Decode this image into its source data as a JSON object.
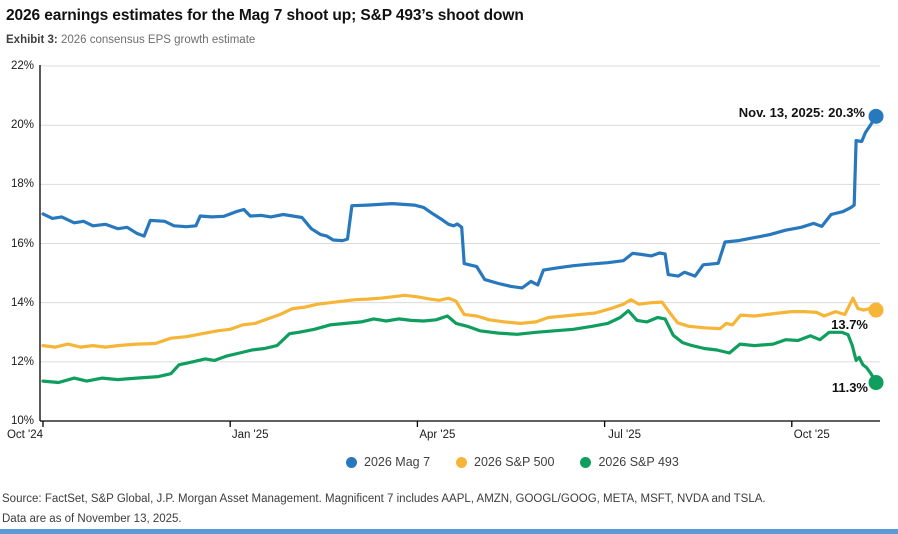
{
  "page": {
    "title": "2026 earnings estimates for the Mag 7 shoot up; S&P 493’s shoot down",
    "exhibit_label": "Exhibit 3:",
    "exhibit_text": " 2026 consensus EPS growth estimate",
    "source_line1": "Source: FactSet, S&P Global, J.P. Morgan Asset Management. Magnificent 7 includes AAPL, AMZN, GOOGL/GOOG, META, MSFT, NVDA and TSLA.",
    "source_line2": "Data are as of November 13, 2025."
  },
  "annotations": {
    "peak_label": "Nov. 13, 2025: 20.3%",
    "sp500_end_label": "13.7%",
    "sp493_end_label": "11.3%"
  },
  "colors": {
    "mag7_blue": "#2878BE",
    "sp500_yellow": "#F7B538",
    "sp493_green": "#0F9E5E",
    "grid_gray": "#dcdcdc",
    "axis_black": "#000000",
    "footer_blue": "#5b9bd5"
  },
  "chart_data": {
    "type": "line",
    "title": "2026 consensus EPS growth estimate",
    "x_unit": "months since Oct 1, 2024",
    "ylim": [
      10,
      22
    ],
    "xlim": [
      0,
      13.45
    ],
    "grid": "horizontal",
    "legend_position": "bottom",
    "y_ticks": [
      {
        "label": "22%",
        "value": 22
      },
      {
        "label": "20%",
        "value": 20
      },
      {
        "label": "18%",
        "value": 18
      },
      {
        "label": "16%",
        "value": 16
      },
      {
        "label": "14%",
        "value": 14
      },
      {
        "label": "12%",
        "value": 12
      },
      {
        "label": "10%",
        "value": 10
      }
    ],
    "x_ticks": [
      {
        "label": "Oct '24",
        "month": 0
      },
      {
        "label": "Jan '25",
        "month": 3
      },
      {
        "label": "Apr '25",
        "month": 6
      },
      {
        "label": "Jul '25",
        "month": 9
      },
      {
        "label": "Oct '25",
        "month": 12
      }
    ],
    "series": [
      {
        "name": "2026 Mag 7",
        "color": "#2878BE",
        "end_value": 20.3,
        "end_date": "Nov. 13, 2025",
        "points": [
          [
            0,
            17.0
          ],
          [
            0.15,
            16.85
          ],
          [
            0.3,
            16.9
          ],
          [
            0.5,
            16.7
          ],
          [
            0.65,
            16.75
          ],
          [
            0.8,
            16.6
          ],
          [
            1.0,
            16.65
          ],
          [
            1.2,
            16.5
          ],
          [
            1.35,
            16.55
          ],
          [
            1.5,
            16.35
          ],
          [
            1.62,
            16.25
          ],
          [
            1.72,
            16.78
          ],
          [
            1.95,
            16.75
          ],
          [
            2.1,
            16.6
          ],
          [
            2.3,
            16.57
          ],
          [
            2.45,
            16.6
          ],
          [
            2.52,
            16.93
          ],
          [
            2.7,
            16.9
          ],
          [
            2.9,
            16.92
          ],
          [
            3.1,
            17.08
          ],
          [
            3.22,
            17.15
          ],
          [
            3.32,
            16.93
          ],
          [
            3.5,
            16.95
          ],
          [
            3.65,
            16.9
          ],
          [
            3.85,
            16.98
          ],
          [
            4.0,
            16.93
          ],
          [
            4.15,
            16.88
          ],
          [
            4.3,
            16.5
          ],
          [
            4.45,
            16.3
          ],
          [
            4.55,
            16.25
          ],
          [
            4.65,
            16.12
          ],
          [
            4.8,
            16.1
          ],
          [
            4.88,
            16.15
          ],
          [
            4.95,
            17.28
          ],
          [
            5.2,
            17.3
          ],
          [
            5.6,
            17.35
          ],
          [
            5.95,
            17.3
          ],
          [
            6.1,
            17.22
          ],
          [
            6.25,
            17.0
          ],
          [
            6.4,
            16.8
          ],
          [
            6.5,
            16.65
          ],
          [
            6.58,
            16.6
          ],
          [
            6.64,
            16.66
          ],
          [
            6.71,
            16.55
          ],
          [
            6.75,
            15.32
          ],
          [
            6.95,
            15.22
          ],
          [
            7.08,
            14.78
          ],
          [
            7.3,
            14.65
          ],
          [
            7.5,
            14.55
          ],
          [
            7.68,
            14.5
          ],
          [
            7.82,
            14.72
          ],
          [
            7.93,
            14.6
          ],
          [
            8.02,
            15.1
          ],
          [
            8.25,
            15.18
          ],
          [
            8.5,
            15.25
          ],
          [
            8.75,
            15.3
          ],
          [
            9.05,
            15.35
          ],
          [
            9.3,
            15.42
          ],
          [
            9.45,
            15.67
          ],
          [
            9.6,
            15.63
          ],
          [
            9.75,
            15.58
          ],
          [
            9.88,
            15.68
          ],
          [
            9.97,
            15.65
          ],
          [
            10.02,
            14.95
          ],
          [
            10.18,
            14.9
          ],
          [
            10.28,
            15.03
          ],
          [
            10.45,
            14.9
          ],
          [
            10.58,
            15.28
          ],
          [
            10.82,
            15.33
          ],
          [
            10.93,
            16.05
          ],
          [
            11.15,
            16.1
          ],
          [
            11.4,
            16.2
          ],
          [
            11.65,
            16.3
          ],
          [
            11.9,
            16.45
          ],
          [
            12.15,
            16.55
          ],
          [
            12.35,
            16.68
          ],
          [
            12.48,
            16.58
          ],
          [
            12.63,
            16.98
          ],
          [
            12.82,
            17.08
          ],
          [
            12.95,
            17.22
          ],
          [
            13.0,
            17.3
          ],
          [
            13.03,
            19.48
          ],
          [
            13.12,
            19.45
          ],
          [
            13.18,
            19.75
          ],
          [
            13.26,
            20.0
          ],
          [
            13.35,
            20.3
          ]
        ]
      },
      {
        "name": "2026 S&P 500",
        "color": "#F7B538",
        "end_value": 13.7,
        "points": [
          [
            0,
            12.55
          ],
          [
            0.2,
            12.5
          ],
          [
            0.4,
            12.6
          ],
          [
            0.6,
            12.5
          ],
          [
            0.8,
            12.55
          ],
          [
            1.0,
            12.5
          ],
          [
            1.2,
            12.55
          ],
          [
            1.5,
            12.6
          ],
          [
            1.8,
            12.62
          ],
          [
            2.05,
            12.8
          ],
          [
            2.3,
            12.85
          ],
          [
            2.55,
            12.95
          ],
          [
            2.8,
            13.05
          ],
          [
            3.0,
            13.1
          ],
          [
            3.2,
            13.25
          ],
          [
            3.4,
            13.3
          ],
          [
            3.6,
            13.45
          ],
          [
            3.8,
            13.6
          ],
          [
            4.0,
            13.8
          ],
          [
            4.2,
            13.85
          ],
          [
            4.4,
            13.95
          ],
          [
            4.6,
            14.0
          ],
          [
            4.8,
            14.05
          ],
          [
            5.0,
            14.1
          ],
          [
            5.2,
            14.12
          ],
          [
            5.4,
            14.15
          ],
          [
            5.6,
            14.2
          ],
          [
            5.8,
            14.25
          ],
          [
            6.0,
            14.2
          ],
          [
            6.2,
            14.12
          ],
          [
            6.35,
            14.08
          ],
          [
            6.5,
            14.15
          ],
          [
            6.62,
            14.05
          ],
          [
            6.75,
            13.6
          ],
          [
            6.95,
            13.55
          ],
          [
            7.15,
            13.42
          ],
          [
            7.4,
            13.35
          ],
          [
            7.65,
            13.3
          ],
          [
            7.9,
            13.35
          ],
          [
            8.1,
            13.5
          ],
          [
            8.35,
            13.55
          ],
          [
            8.6,
            13.6
          ],
          [
            8.85,
            13.65
          ],
          [
            9.1,
            13.8
          ],
          [
            9.3,
            13.95
          ],
          [
            9.42,
            14.1
          ],
          [
            9.55,
            13.95
          ],
          [
            9.75,
            14.0
          ],
          [
            9.92,
            14.02
          ],
          [
            10.03,
            13.7
          ],
          [
            10.17,
            13.32
          ],
          [
            10.35,
            13.2
          ],
          [
            10.6,
            13.15
          ],
          [
            10.85,
            13.12
          ],
          [
            10.95,
            13.3
          ],
          [
            11.05,
            13.25
          ],
          [
            11.18,
            13.58
          ],
          [
            11.4,
            13.55
          ],
          [
            11.6,
            13.6
          ],
          [
            11.8,
            13.65
          ],
          [
            12.0,
            13.7
          ],
          [
            12.2,
            13.7
          ],
          [
            12.4,
            13.67
          ],
          [
            12.52,
            13.55
          ],
          [
            12.7,
            13.7
          ],
          [
            12.85,
            13.6
          ],
          [
            12.98,
            14.15
          ],
          [
            13.06,
            13.8
          ],
          [
            13.15,
            13.75
          ],
          [
            13.25,
            13.8
          ],
          [
            13.35,
            13.75
          ]
        ]
      },
      {
        "name": "2026 S&P 493",
        "color": "#0F9E5E",
        "end_value": 11.3,
        "points": [
          [
            0,
            11.35
          ],
          [
            0.25,
            11.3
          ],
          [
            0.5,
            11.45
          ],
          [
            0.7,
            11.35
          ],
          [
            0.95,
            11.45
          ],
          [
            1.2,
            11.4
          ],
          [
            1.5,
            11.45
          ],
          [
            1.85,
            11.5
          ],
          [
            2.05,
            11.6
          ],
          [
            2.18,
            11.9
          ],
          [
            2.4,
            12.0
          ],
          [
            2.6,
            12.1
          ],
          [
            2.75,
            12.05
          ],
          [
            2.95,
            12.2
          ],
          [
            3.15,
            12.3
          ],
          [
            3.35,
            12.4
          ],
          [
            3.55,
            12.45
          ],
          [
            3.75,
            12.55
          ],
          [
            3.95,
            12.95
          ],
          [
            4.1,
            13.0
          ],
          [
            4.35,
            13.1
          ],
          [
            4.6,
            13.25
          ],
          [
            4.85,
            13.3
          ],
          [
            5.1,
            13.35
          ],
          [
            5.3,
            13.45
          ],
          [
            5.5,
            13.38
          ],
          [
            5.7,
            13.45
          ],
          [
            5.9,
            13.4
          ],
          [
            6.1,
            13.38
          ],
          [
            6.3,
            13.42
          ],
          [
            6.48,
            13.55
          ],
          [
            6.62,
            13.3
          ],
          [
            6.8,
            13.2
          ],
          [
            7.0,
            13.05
          ],
          [
            7.3,
            12.97
          ],
          [
            7.6,
            12.93
          ],
          [
            7.9,
            13.0
          ],
          [
            8.2,
            13.05
          ],
          [
            8.5,
            13.1
          ],
          [
            8.8,
            13.2
          ],
          [
            9.05,
            13.3
          ],
          [
            9.25,
            13.5
          ],
          [
            9.38,
            13.73
          ],
          [
            9.52,
            13.4
          ],
          [
            9.68,
            13.35
          ],
          [
            9.85,
            13.5
          ],
          [
            9.97,
            13.45
          ],
          [
            10.1,
            12.9
          ],
          [
            10.25,
            12.65
          ],
          [
            10.4,
            12.55
          ],
          [
            10.6,
            12.45
          ],
          [
            10.8,
            12.4
          ],
          [
            11.0,
            12.3
          ],
          [
            11.17,
            12.6
          ],
          [
            11.4,
            12.55
          ],
          [
            11.7,
            12.6
          ],
          [
            11.9,
            12.75
          ],
          [
            12.1,
            12.72
          ],
          [
            12.3,
            12.88
          ],
          [
            12.45,
            12.75
          ],
          [
            12.6,
            13.0
          ],
          [
            12.8,
            13.0
          ],
          [
            12.9,
            12.92
          ],
          [
            12.97,
            12.55
          ],
          [
            13.03,
            12.05
          ],
          [
            13.08,
            12.15
          ],
          [
            13.14,
            11.9
          ],
          [
            13.2,
            11.8
          ],
          [
            13.27,
            11.6
          ],
          [
            13.35,
            11.3
          ]
        ]
      }
    ]
  }
}
